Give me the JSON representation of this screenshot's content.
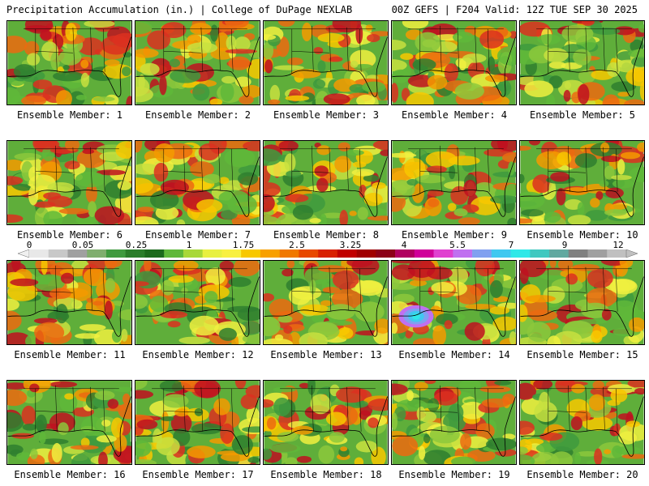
{
  "header": {
    "left": "Precipitation Accumulation (in.) | College of DuPage NEXLAB",
    "right": "00Z GEFS | F204 Valid: 12Z TUE SEP 30 2025"
  },
  "members": [
    {
      "label": "Ensemble Member: 1",
      "seed": 11
    },
    {
      "label": "Ensemble Member: 2",
      "seed": 23
    },
    {
      "label": "Ensemble Member: 3",
      "seed": 37
    },
    {
      "label": "Ensemble Member: 4",
      "seed": 41
    },
    {
      "label": "Ensemble Member: 5",
      "seed": 53
    },
    {
      "label": "Ensemble Member: 6",
      "seed": 61
    },
    {
      "label": "Ensemble Member: 7",
      "seed": 73
    },
    {
      "label": "Ensemble Member: 8",
      "seed": 89
    },
    {
      "label": "Ensemble Member: 9",
      "seed": 97
    },
    {
      "label": "Ensemble Member: 10",
      "seed": 101
    },
    {
      "label": "Ensemble Member: 11",
      "seed": 113
    },
    {
      "label": "Ensemble Member: 12",
      "seed": 127
    },
    {
      "label": "Ensemble Member: 13",
      "seed": 131
    },
    {
      "label": "Ensemble Member: 14",
      "seed": 149
    },
    {
      "label": "Ensemble Member: 15",
      "seed": 151
    },
    {
      "label": "Ensemble Member: 16",
      "seed": 163
    },
    {
      "label": "Ensemble Member: 17",
      "seed": 173
    },
    {
      "label": "Ensemble Member: 18",
      "seed": 181
    },
    {
      "label": "Ensemble Member: 19",
      "seed": 191
    },
    {
      "label": "Ensemble Member: 20",
      "seed": 199
    }
  ],
  "colorbar": {
    "ticks": [
      "0",
      "0.05",
      "0.25",
      "1",
      "1.75",
      "2.5",
      "3.25",
      "4",
      "5.5",
      "7",
      "9",
      "12"
    ],
    "colors": [
      "#e8e8e8",
      "#c8c8c8",
      "#a0a0a0",
      "#7fae6e",
      "#3f9a3f",
      "#2a7d2a",
      "#1c6a1c",
      "#5fb83a",
      "#a8d838",
      "#e8f040",
      "#f8f040",
      "#f8c800",
      "#f8a000",
      "#f07800",
      "#e84800",
      "#d82000",
      "#c00000",
      "#a00000",
      "#8c0018",
      "#b00060",
      "#d0009a",
      "#e040d0",
      "#c070f0",
      "#80a0f0",
      "#40c8f0",
      "#30e8e8",
      "#40c8c0",
      "#60a8a0",
      "#808080",
      "#a0a0a0",
      "#c0c0c0"
    ],
    "icons": {
      "left": "arrow-left-icon",
      "right": "arrow-right-icon"
    }
  }
}
